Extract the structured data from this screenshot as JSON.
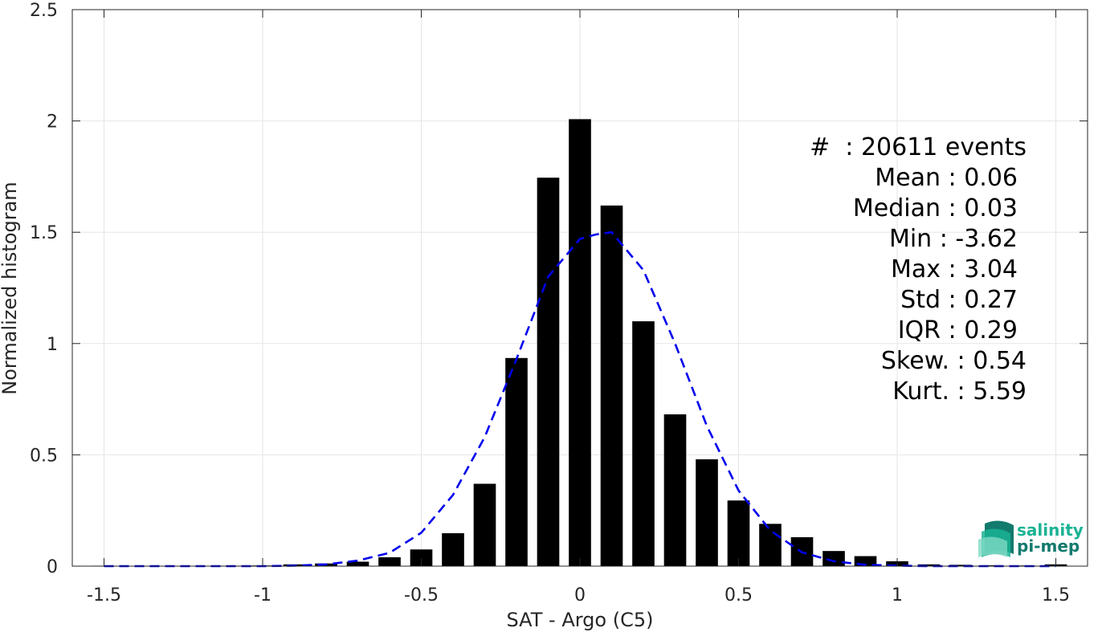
{
  "chart_data": {
    "type": "bar",
    "xlabel": "SAT - Argo (C5)",
    "ylabel": "Normalized histogram",
    "xlim": [
      -1.6,
      1.6
    ],
    "ylim": [
      0,
      2.5
    ],
    "xticks": [
      -1.5,
      -1,
      -0.5,
      0,
      0.5,
      1,
      1.5
    ],
    "xtick_labels": [
      "-1.5",
      "-1",
      "-0.5",
      "0",
      "0.5",
      "1",
      "1.5"
    ],
    "yticks": [
      0,
      0.5,
      1,
      1.5,
      2,
      2.5
    ],
    "ytick_labels": [
      "0",
      "0.5",
      "1",
      "1.5",
      "2",
      "2.5"
    ],
    "grid": true,
    "bar_width": 0.07,
    "bars": {
      "x": [
        -1.5,
        -1.4,
        -1.3,
        -1.2,
        -1.1,
        -1.0,
        -0.9,
        -0.8,
        -0.7,
        -0.6,
        -0.5,
        -0.4,
        -0.3,
        -0.2,
        -0.1,
        0.0,
        0.1,
        0.2,
        0.3,
        0.4,
        0.5,
        0.6,
        0.7,
        0.8,
        0.9,
        1.0,
        1.1,
        1.2,
        1.3,
        1.4,
        1.5
      ],
      "values": [
        0.002,
        0.001,
        0.001,
        0.001,
        0.002,
        0.003,
        0.008,
        0.012,
        0.02,
        0.04,
        0.075,
        0.148,
        0.37,
        0.935,
        1.745,
        2.008,
        1.62,
        1.1,
        0.682,
        0.48,
        0.295,
        0.19,
        0.13,
        0.068,
        0.045,
        0.022,
        0.008,
        0.006,
        0.004,
        0.003,
        0.008
      ]
    },
    "fit_curve": {
      "style": "dashed",
      "color": "#0000ee",
      "x": [
        -1.5,
        -1.4,
        -1.3,
        -1.2,
        -1.1,
        -1.0,
        -0.9,
        -0.8,
        -0.7,
        -0.6,
        -0.5,
        -0.4,
        -0.3,
        -0.2,
        -0.1,
        0.0,
        0.05,
        0.1,
        0.2,
        0.3,
        0.4,
        0.5,
        0.6,
        0.7,
        0.8,
        0.9,
        1.0,
        1.1,
        1.2,
        1.3,
        1.4,
        1.5
      ],
      "y": [
        0,
        0,
        0,
        0,
        0,
        0,
        0.002,
        0.008,
        0.025,
        0.06,
        0.15,
        0.32,
        0.58,
        0.93,
        1.3,
        1.47,
        1.49,
        1.5,
        1.33,
        1.0,
        0.63,
        0.34,
        0.16,
        0.062,
        0.022,
        0.006,
        0.002,
        0,
        0,
        0,
        0,
        0
      ]
    }
  },
  "stats": {
    "events": "#  : 20611 events",
    "mean": "Mean : 0.06",
    "median": "Median : 0.03",
    "min": "Min : -3.62",
    "max": "Max : 3.04",
    "std": "Std : 0.27",
    "iqr": "IQR : 0.29",
    "skew": "Skew. : 0.54",
    "kurt": "Kurt. : 5.59"
  },
  "logo": {
    "line1": "salinity",
    "line2": "pi-mep"
  },
  "colors": {
    "bars": "#000000",
    "fit": "#0000ee",
    "grid": "#e6e6e6",
    "axis": "#262626",
    "logo_teal": "#1ab394",
    "logo_dark": "#137a6e"
  }
}
